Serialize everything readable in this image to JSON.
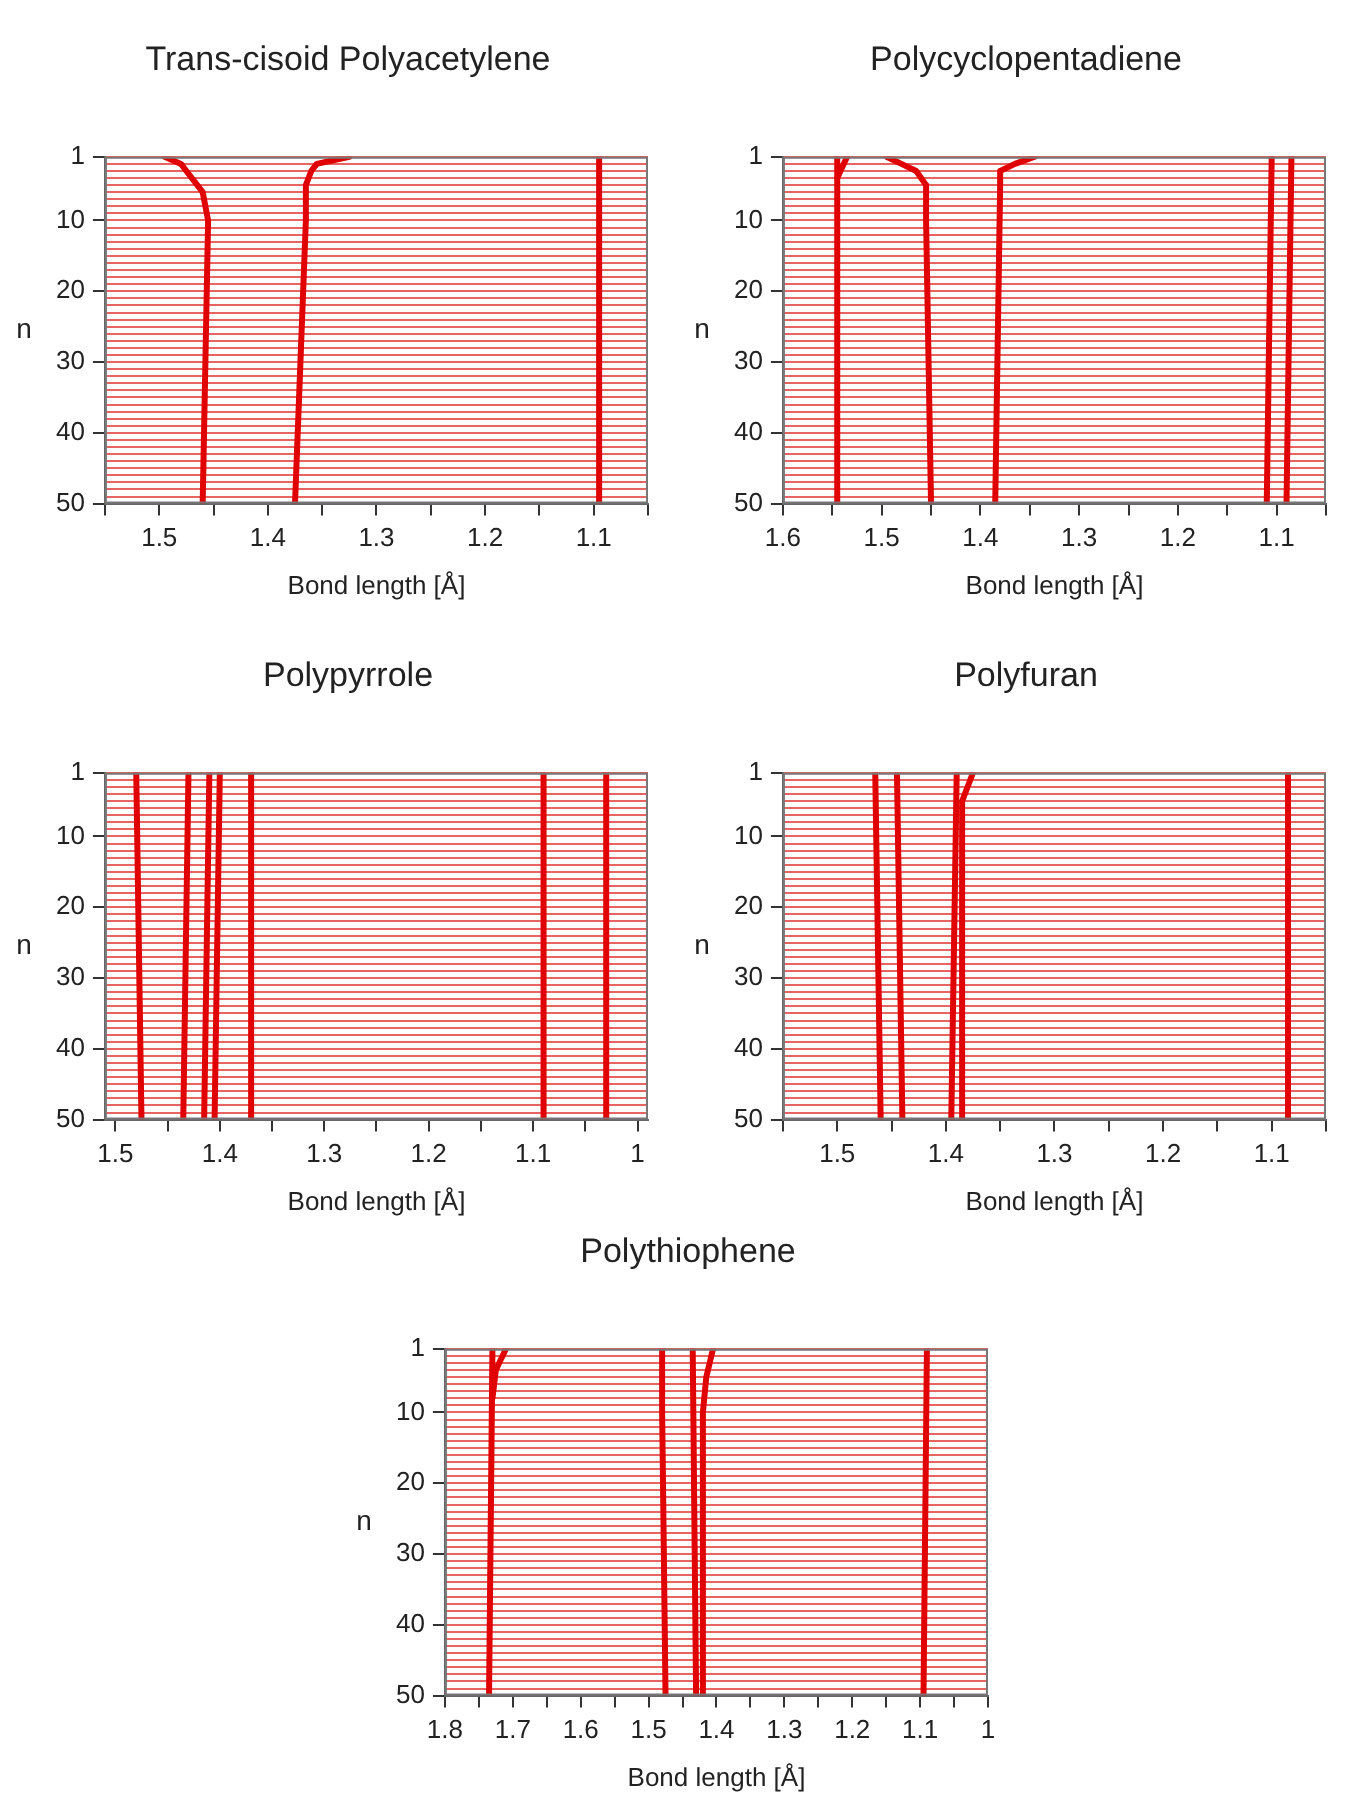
{
  "chart_data": [
    {
      "type": "line",
      "title": "Trans-cisoid Polyacetylene",
      "xlabel": "Bond length [Å]",
      "ylabel": "n",
      "xlim": [
        1.55,
        1.05
      ],
      "xticks": [
        {
          "value": 1.55,
          "label": null
        },
        1.5,
        {
          "value": 1.45,
          "label": null
        },
        1.4,
        {
          "value": 1.35,
          "label": null
        },
        1.3,
        {
          "value": 1.25,
          "label": null
        },
        1.2,
        {
          "value": 1.15,
          "label": null
        },
        1.1,
        {
          "value": 1.05,
          "label": null
        }
      ],
      "ylim": [
        50,
        1
      ],
      "yticks": [
        1,
        {
          "value": 2,
          "label": null
        },
        {
          "value": 3,
          "label": null
        },
        {
          "value": 4,
          "label": null
        },
        {
          "value": 5,
          "label": null
        },
        {
          "value": 6,
          "label": null
        },
        {
          "value": 7,
          "label": null
        },
        {
          "value": 8,
          "label": null
        },
        {
          "value": 9,
          "label": null
        },
        10,
        {
          "value": 11,
          "label": null
        },
        {
          "value": 12,
          "label": null
        },
        {
          "value": 13,
          "label": null
        },
        {
          "value": 14,
          "label": null
        },
        {
          "value": 15,
          "label": null
        },
        {
          "value": 16,
          "label": null
        },
        {
          "value": 17,
          "label": null
        },
        {
          "value": 18,
          "label": null
        },
        {
          "value": 19,
          "label": null
        },
        20,
        {
          "value": 21,
          "label": null
        },
        {
          "value": 22,
          "label": null
        },
        {
          "value": 23,
          "label": null
        },
        {
          "value": 24,
          "label": null
        },
        {
          "value": 25,
          "label": null
        },
        {
          "value": 26,
          "label": null
        },
        {
          "value": 27,
          "label": null
        },
        {
          "value": 28,
          "label": null
        },
        {
          "value": 29,
          "label": null
        },
        30,
        {
          "value": 31,
          "label": null
        },
        {
          "value": 32,
          "label": null
        },
        {
          "value": 33,
          "label": null
        },
        {
          "value": 34,
          "label": null
        },
        {
          "value": 35,
          "label": null
        },
        {
          "value": 36,
          "label": null
        },
        {
          "value": 37,
          "label": null
        },
        {
          "value": 38,
          "label": null
        },
        {
          "value": 39,
          "label": null
        },
        40,
        {
          "value": 41,
          "label": null
        },
        {
          "value": 42,
          "label": null
        },
        {
          "value": 43,
          "label": null
        },
        {
          "value": 44,
          "label": null
        },
        {
          "value": 45,
          "label": null
        },
        {
          "value": 46,
          "label": null
        },
        {
          "value": 47,
          "label": null
        },
        {
          "value": 48,
          "label": null
        },
        {
          "value": 49,
          "label": null
        },
        50
      ],
      "grid": "y",
      "marker": "none",
      "series": [
        {
          "color": "#e00000",
          "x": [
            1.495,
            1.48,
            1.475,
            1.47,
            1.46,
            1.455,
            1.46
          ],
          "values": [
            1,
            2,
            3,
            4,
            6,
            10,
            50
          ]
        },
        {
          "color": "#e00000",
          "x": [
            1.325,
            1.355,
            1.36,
            1.365,
            1.365,
            1.37,
            1.375
          ],
          "values": [
            1,
            2,
            3,
            5,
            10,
            30,
            50
          ]
        },
        {
          "color": "#e00000",
          "x": [
            1.095,
            1.095
          ],
          "values": [
            1,
            50
          ]
        }
      ]
    },
    {
      "type": "line",
      "title": "Polycyclopentadiene",
      "xlabel": "Bond length [Å]",
      "ylabel": "n",
      "xlim": [
        1.6,
        1.05
      ],
      "xticks": [
        1.6,
        {
          "value": 1.55,
          "label": null
        },
        1.5,
        {
          "value": 1.45,
          "label": null
        },
        1.4,
        {
          "value": 1.35,
          "label": null
        },
        1.3,
        {
          "value": 1.25,
          "label": null
        },
        1.2,
        {
          "value": 1.15,
          "label": null
        },
        1.1,
        {
          "value": 1.05,
          "label": null
        }
      ],
      "ylim": [
        50,
        1
      ],
      "yticks": [
        1,
        {
          "value": 2,
          "label": null
        },
        {
          "value": 3,
          "label": null
        },
        {
          "value": 4,
          "label": null
        },
        {
          "value": 5,
          "label": null
        },
        {
          "value": 6,
          "label": null
        },
        {
          "value": 7,
          "label": null
        },
        {
          "value": 8,
          "label": null
        },
        {
          "value": 9,
          "label": null
        },
        10,
        {
          "value": 11,
          "label": null
        },
        {
          "value": 12,
          "label": null
        },
        {
          "value": 13,
          "label": null
        },
        {
          "value": 14,
          "label": null
        },
        {
          "value": 15,
          "label": null
        },
        {
          "value": 16,
          "label": null
        },
        {
          "value": 17,
          "label": null
        },
        {
          "value": 18,
          "label": null
        },
        {
          "value": 19,
          "label": null
        },
        20,
        {
          "value": 21,
          "label": null
        },
        {
          "value": 22,
          "label": null
        },
        {
          "value": 23,
          "label": null
        },
        {
          "value": 24,
          "label": null
        },
        {
          "value": 25,
          "label": null
        },
        {
          "value": 26,
          "label": null
        },
        {
          "value": 27,
          "label": null
        },
        {
          "value": 28,
          "label": null
        },
        {
          "value": 29,
          "label": null
        },
        30,
        {
          "value": 31,
          "label": null
        },
        {
          "value": 32,
          "label": null
        },
        {
          "value": 33,
          "label": null
        },
        {
          "value": 34,
          "label": null
        },
        {
          "value": 35,
          "label": null
        },
        {
          "value": 36,
          "label": null
        },
        {
          "value": 37,
          "label": null
        },
        {
          "value": 38,
          "label": null
        },
        {
          "value": 39,
          "label": null
        },
        40,
        {
          "value": 41,
          "label": null
        },
        {
          "value": 42,
          "label": null
        },
        {
          "value": 43,
          "label": null
        },
        {
          "value": 44,
          "label": null
        },
        {
          "value": 45,
          "label": null
        },
        {
          "value": 46,
          "label": null
        },
        {
          "value": 47,
          "label": null
        },
        {
          "value": 48,
          "label": null
        },
        {
          "value": 49,
          "label": null
        },
        50
      ],
      "grid": "y",
      "marker": "none",
      "series": [
        {
          "color": "#e00000",
          "x": [
            1.545,
            1.545
          ],
          "values": [
            1,
            50
          ]
        },
        {
          "color": "#e00000",
          "x": [
            1.535,
            1.545
          ],
          "values": [
            1,
            4
          ]
        },
        {
          "color": "#e00000",
          "x": [
            1.495,
            1.48,
            1.465,
            1.455,
            1.455,
            1.45
          ],
          "values": [
            1,
            2,
            3,
            5,
            10,
            50
          ]
        },
        {
          "color": "#e00000",
          "x": [
            1.345,
            1.365,
            1.38,
            1.38,
            1.385
          ],
          "values": [
            1,
            2,
            3,
            5,
            50
          ]
        },
        {
          "color": "#e00000",
          "x": [
            1.105,
            1.11
          ],
          "values": [
            1,
            50
          ]
        },
        {
          "color": "#e00000",
          "x": [
            1.085,
            1.09
          ],
          "values": [
            1,
            50
          ]
        }
      ]
    },
    {
      "type": "line",
      "title": "Polypyrrole",
      "xlabel": "Bond length [Å]",
      "ylabel": "n",
      "xlim": [
        1.51,
        0.99
      ],
      "xticks": [
        1.5,
        {
          "value": 1.45,
          "label": null
        },
        1.4,
        {
          "value": 1.35,
          "label": null
        },
        1.3,
        {
          "value": 1.25,
          "label": null
        },
        1.2,
        {
          "value": 1.15,
          "label": null
        },
        1.1,
        {
          "value": 1.05,
          "label": null
        },
        1
      ],
      "ylim": [
        50,
        1
      ],
      "yticks": [
        1,
        {
          "value": 2,
          "label": null
        },
        {
          "value": 3,
          "label": null
        },
        {
          "value": 4,
          "label": null
        },
        {
          "value": 5,
          "label": null
        },
        {
          "value": 6,
          "label": null
        },
        {
          "value": 7,
          "label": null
        },
        {
          "value": 8,
          "label": null
        },
        {
          "value": 9,
          "label": null
        },
        10,
        {
          "value": 11,
          "label": null
        },
        {
          "value": 12,
          "label": null
        },
        {
          "value": 13,
          "label": null
        },
        {
          "value": 14,
          "label": null
        },
        {
          "value": 15,
          "label": null
        },
        {
          "value": 16,
          "label": null
        },
        {
          "value": 17,
          "label": null
        },
        {
          "value": 18,
          "label": null
        },
        {
          "value": 19,
          "label": null
        },
        20,
        {
          "value": 21,
          "label": null
        },
        {
          "value": 22,
          "label": null
        },
        {
          "value": 23,
          "label": null
        },
        {
          "value": 24,
          "label": null
        },
        {
          "value": 25,
          "label": null
        },
        {
          "value": 26,
          "label": null
        },
        {
          "value": 27,
          "label": null
        },
        {
          "value": 28,
          "label": null
        },
        {
          "value": 29,
          "label": null
        },
        30,
        {
          "value": 31,
          "label": null
        },
        {
          "value": 32,
          "label": null
        },
        {
          "value": 33,
          "label": null
        },
        {
          "value": 34,
          "label": null
        },
        {
          "value": 35,
          "label": null
        },
        {
          "value": 36,
          "label": null
        },
        {
          "value": 37,
          "label": null
        },
        {
          "value": 38,
          "label": null
        },
        {
          "value": 39,
          "label": null
        },
        40,
        {
          "value": 41,
          "label": null
        },
        {
          "value": 42,
          "label": null
        },
        {
          "value": 43,
          "label": null
        },
        {
          "value": 44,
          "label": null
        },
        {
          "value": 45,
          "label": null
        },
        {
          "value": 46,
          "label": null
        },
        {
          "value": 47,
          "label": null
        },
        {
          "value": 48,
          "label": null
        },
        {
          "value": 49,
          "label": null
        },
        50
      ],
      "grid": "y",
      "marker": "none",
      "series": [
        {
          "color": "#e00000",
          "x": [
            1.48,
            1.475
          ],
          "values": [
            1,
            50
          ]
        },
        {
          "color": "#e00000",
          "x": [
            1.43,
            1.435
          ],
          "values": [
            1,
            50
          ]
        },
        {
          "color": "#e00000",
          "x": [
            1.41,
            1.415
          ],
          "values": [
            1,
            50
          ]
        },
        {
          "color": "#e00000",
          "x": [
            1.4,
            1.405
          ],
          "values": [
            1,
            50
          ]
        },
        {
          "color": "#e00000",
          "x": [
            1.37,
            1.37
          ],
          "values": [
            1,
            50
          ]
        },
        {
          "color": "#e00000",
          "x": [
            1.09,
            1.09
          ],
          "values": [
            1,
            50
          ]
        },
        {
          "color": "#e00000",
          "x": [
            1.03,
            1.03
          ],
          "values": [
            1,
            50
          ]
        }
      ]
    },
    {
      "type": "line",
      "title": "Polyfuran",
      "xlabel": "Bond length [Å]",
      "ylabel": "n",
      "xlim": [
        1.55,
        1.05
      ],
      "xticks": [
        {
          "value": 1.55,
          "label": null
        },
        1.5,
        {
          "value": 1.45,
          "label": null
        },
        1.4,
        {
          "value": 1.35,
          "label": null
        },
        1.3,
        {
          "value": 1.25,
          "label": null
        },
        1.2,
        {
          "value": 1.15,
          "label": null
        },
        1.1,
        {
          "value": 1.05,
          "label": null
        }
      ],
      "ylim": [
        50,
        1
      ],
      "yticks": [
        1,
        {
          "value": 2,
          "label": null
        },
        {
          "value": 3,
          "label": null
        },
        {
          "value": 4,
          "label": null
        },
        {
          "value": 5,
          "label": null
        },
        {
          "value": 6,
          "label": null
        },
        {
          "value": 7,
          "label": null
        },
        {
          "value": 8,
          "label": null
        },
        {
          "value": 9,
          "label": null
        },
        10,
        {
          "value": 11,
          "label": null
        },
        {
          "value": 12,
          "label": null
        },
        {
          "value": 13,
          "label": null
        },
        {
          "value": 14,
          "label": null
        },
        {
          "value": 15,
          "label": null
        },
        {
          "value": 16,
          "label": null
        },
        {
          "value": 17,
          "label": null
        },
        {
          "value": 18,
          "label": null
        },
        {
          "value": 19,
          "label": null
        },
        20,
        {
          "value": 21,
          "label": null
        },
        {
          "value": 22,
          "label": null
        },
        {
          "value": 23,
          "label": null
        },
        {
          "value": 24,
          "label": null
        },
        {
          "value": 25,
          "label": null
        },
        {
          "value": 26,
          "label": null
        },
        {
          "value": 27,
          "label": null
        },
        {
          "value": 28,
          "label": null
        },
        {
          "value": 29,
          "label": null
        },
        30,
        {
          "value": 31,
          "label": null
        },
        {
          "value": 32,
          "label": null
        },
        {
          "value": 33,
          "label": null
        },
        {
          "value": 34,
          "label": null
        },
        {
          "value": 35,
          "label": null
        },
        {
          "value": 36,
          "label": null
        },
        {
          "value": 37,
          "label": null
        },
        {
          "value": 38,
          "label": null
        },
        {
          "value": 39,
          "label": null
        },
        40,
        {
          "value": 41,
          "label": null
        },
        {
          "value": 42,
          "label": null
        },
        {
          "value": 43,
          "label": null
        },
        {
          "value": 44,
          "label": null
        },
        {
          "value": 45,
          "label": null
        },
        {
          "value": 46,
          "label": null
        },
        {
          "value": 47,
          "label": null
        },
        {
          "value": 48,
          "label": null
        },
        {
          "value": 49,
          "label": null
        },
        50
      ],
      "grid": "y",
      "marker": "none",
      "series": [
        {
          "color": "#e00000",
          "x": [
            1.465,
            1.46
          ],
          "values": [
            1,
            50
          ]
        },
        {
          "color": "#e00000",
          "x": [
            1.445,
            1.44
          ],
          "values": [
            1,
            50
          ]
        },
        {
          "color": "#e00000",
          "x": [
            1.39,
            1.395
          ],
          "values": [
            1,
            50
          ]
        },
        {
          "color": "#e00000",
          "x": [
            1.375,
            1.385,
            1.385
          ],
          "values": [
            1,
            5,
            50
          ]
        },
        {
          "color": "#e00000",
          "x": [
            1.085,
            1.085
          ],
          "values": [
            1,
            50
          ]
        }
      ]
    },
    {
      "type": "line",
      "title": "Polythiophene",
      "xlabel": "Bond length [Å]",
      "ylabel": "n",
      "xlim": [
        1.8,
        1.0
      ],
      "xticks": [
        1.8,
        {
          "value": 1.75,
          "label": null
        },
        1.7,
        {
          "value": 1.65,
          "label": null
        },
        1.6,
        {
          "value": 1.55,
          "label": null
        },
        1.5,
        {
          "value": 1.45,
          "label": null
        },
        1.4,
        {
          "value": 1.35,
          "label": null
        },
        1.3,
        {
          "value": 1.25,
          "label": null
        },
        1.2,
        {
          "value": 1.15,
          "label": null
        },
        1.1,
        {
          "value": 1.05,
          "label": null
        },
        1
      ],
      "ylim": [
        50,
        1
      ],
      "yticks": [
        1,
        {
          "value": 2,
          "label": null
        },
        {
          "value": 3,
          "label": null
        },
        {
          "value": 4,
          "label": null
        },
        {
          "value": 5,
          "label": null
        },
        {
          "value": 6,
          "label": null
        },
        {
          "value": 7,
          "label": null
        },
        {
          "value": 8,
          "label": null
        },
        {
          "value": 9,
          "label": null
        },
        10,
        {
          "value": 11,
          "label": null
        },
        {
          "value": 12,
          "label": null
        },
        {
          "value": 13,
          "label": null
        },
        {
          "value": 14,
          "label": null
        },
        {
          "value": 15,
          "label": null
        },
        {
          "value": 16,
          "label": null
        },
        {
          "value": 17,
          "label": null
        },
        {
          "value": 18,
          "label": null
        },
        {
          "value": 19,
          "label": null
        },
        20,
        {
          "value": 21,
          "label": null
        },
        {
          "value": 22,
          "label": null
        },
        {
          "value": 23,
          "label": null
        },
        {
          "value": 24,
          "label": null
        },
        {
          "value": 25,
          "label": null
        },
        {
          "value": 26,
          "label": null
        },
        {
          "value": 27,
          "label": null
        },
        {
          "value": 28,
          "label": null
        },
        {
          "value": 29,
          "label": null
        },
        30,
        {
          "value": 31,
          "label": null
        },
        {
          "value": 32,
          "label": null
        },
        {
          "value": 33,
          "label": null
        },
        {
          "value": 34,
          "label": null
        },
        {
          "value": 35,
          "label": null
        },
        {
          "value": 36,
          "label": null
        },
        {
          "value": 37,
          "label": null
        },
        {
          "value": 38,
          "label": null
        },
        {
          "value": 39,
          "label": null
        },
        40,
        {
          "value": 41,
          "label": null
        },
        {
          "value": 42,
          "label": null
        },
        {
          "value": 43,
          "label": null
        },
        {
          "value": 44,
          "label": null
        },
        {
          "value": 45,
          "label": null
        },
        {
          "value": 46,
          "label": null
        },
        {
          "value": 47,
          "label": null
        },
        {
          "value": 48,
          "label": null
        },
        {
          "value": 49,
          "label": null
        },
        50
      ],
      "grid": "y",
      "marker": "none",
      "series": [
        {
          "color": "#e00000",
          "x": [
            1.73,
            1.735
          ],
          "values": [
            1,
            50
          ]
        },
        {
          "color": "#e00000",
          "x": [
            1.71,
            1.725,
            1.73
          ],
          "values": [
            1,
            4,
            8
          ]
        },
        {
          "color": "#e00000",
          "x": [
            1.48,
            1.48,
            1.475
          ],
          "values": [
            1,
            10,
            50
          ]
        },
        {
          "color": "#e00000",
          "x": [
            1.435,
            1.43
          ],
          "values": [
            1,
            50
          ]
        },
        {
          "color": "#e00000",
          "x": [
            1.405,
            1.415,
            1.42,
            1.42
          ],
          "values": [
            1,
            5,
            10,
            50
          ]
        },
        {
          "color": "#e00000",
          "x": [
            1.09,
            1.095
          ],
          "values": [
            1,
            50
          ]
        }
      ]
    }
  ]
}
